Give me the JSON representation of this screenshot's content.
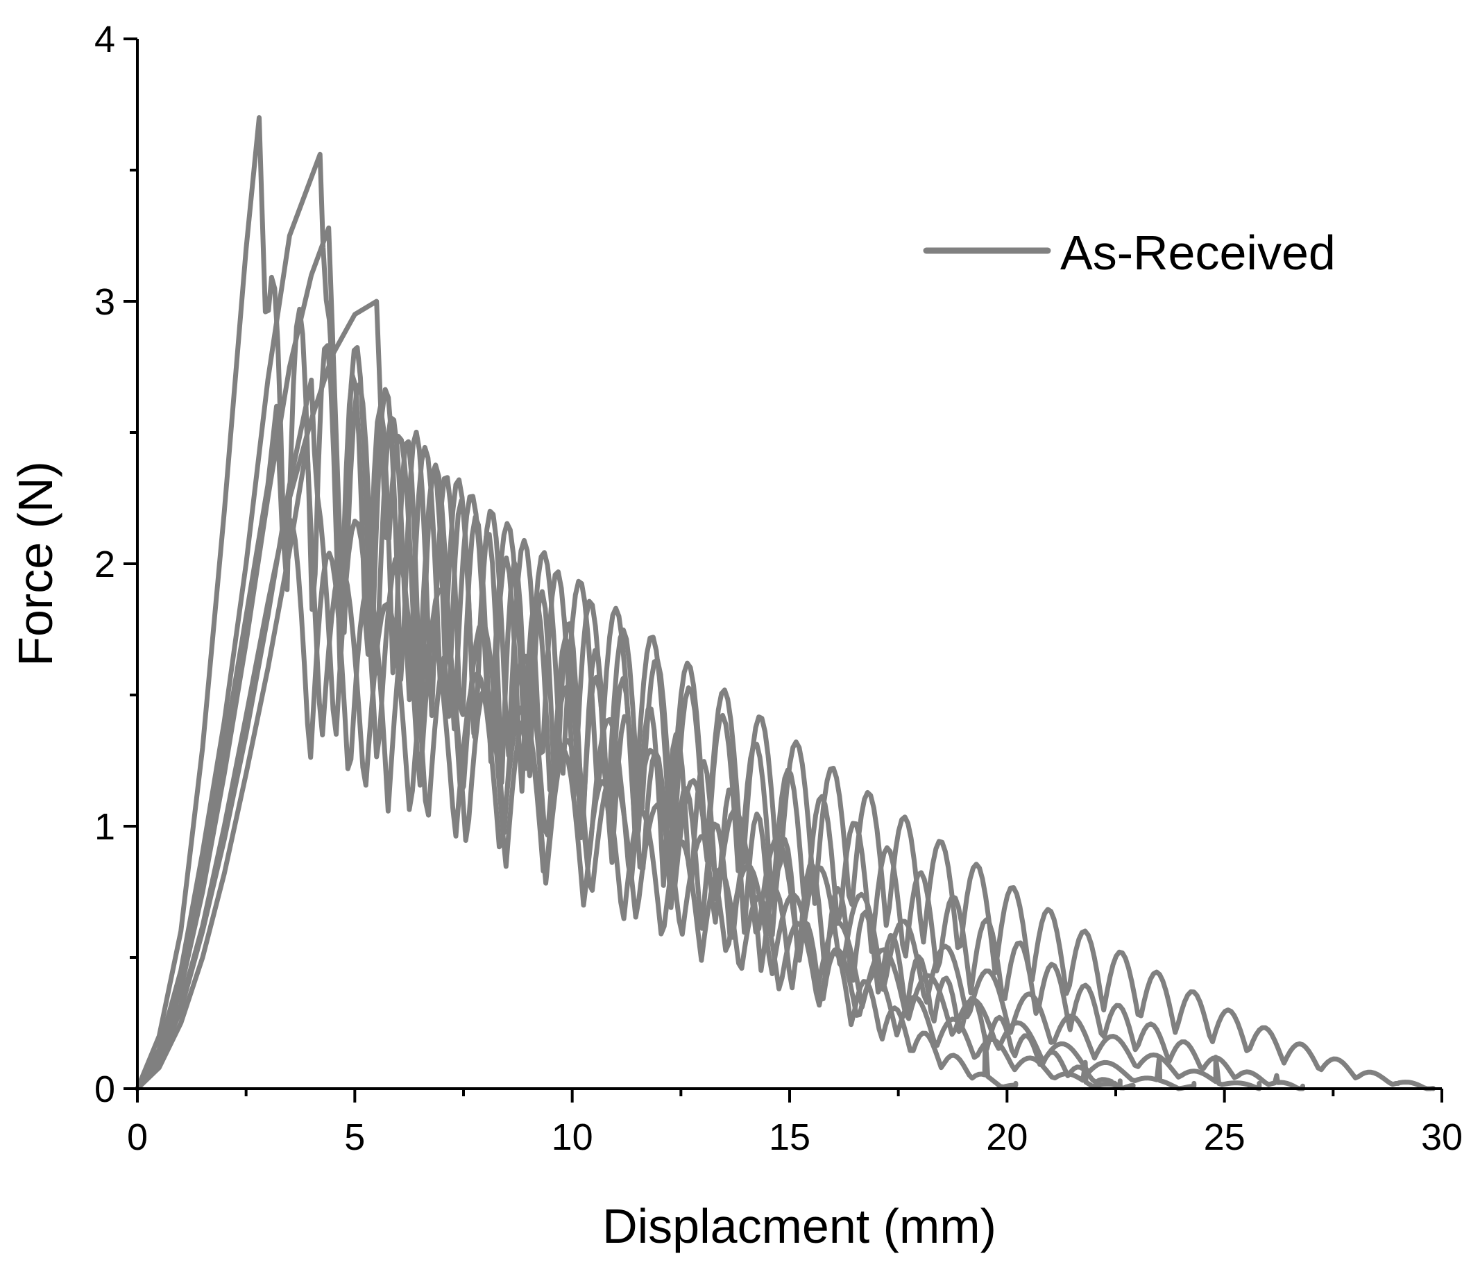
{
  "chart_data": {
    "type": "line",
    "title": "",
    "xlabel": "Displacment (mm)",
    "ylabel": "Force (N)",
    "xlim": [
      0,
      30
    ],
    "ylim": [
      0,
      4
    ],
    "x_ticks": [
      0,
      5,
      10,
      15,
      20,
      25,
      30
    ],
    "x_tick_labels": [
      "0",
      "5",
      "10",
      "15",
      "20",
      "25",
      "30"
    ],
    "y_ticks": [
      0,
      1,
      2,
      3,
      4
    ],
    "y_tick_labels": [
      "0",
      "1",
      "2",
      "3",
      "4"
    ],
    "x_minor_step": 2.5,
    "y_minor_step": 0.5,
    "grid": false,
    "legend": {
      "position": "top-right",
      "entries": [
        "As-Received"
      ]
    },
    "line_color": "#808080",
    "series": [
      {
        "name": "As-Received",
        "envelope_start": 2.8,
        "envelope_peak": 3.7,
        "final_x": 22.9,
        "pts": [
          [
            0,
            0
          ],
          [
            0.5,
            0.2
          ],
          [
            1,
            0.6
          ],
          [
            1.5,
            1.3
          ],
          [
            2,
            2.2
          ],
          [
            2.5,
            3.2
          ],
          [
            2.8,
            3.7
          ],
          [
            3.1,
            3.2
          ],
          [
            3.6,
            2.3
          ],
          [
            4.2,
            2.1
          ],
          [
            21,
            0.3
          ],
          [
            21.8,
            0.08
          ],
          [
            22.4,
            0.02
          ],
          [
            22.9,
            0.01
          ]
        ]
      },
      {
        "name": "As-Received",
        "envelope_start": 4.2,
        "envelope_peak": 3.56,
        "final_x": 20.2,
        "pts": [
          [
            0,
            0
          ],
          [
            0.5,
            0.15
          ],
          [
            1,
            0.45
          ],
          [
            1.5,
            0.9
          ],
          [
            2,
            1.4
          ],
          [
            2.5,
            2.0
          ],
          [
            3,
            2.7
          ],
          [
            3.5,
            3.25
          ],
          [
            4.2,
            3.56
          ],
          [
            4.5,
            3.2
          ],
          [
            5,
            2.6
          ],
          [
            19.5,
            0.2
          ],
          [
            20.2,
            0.02
          ]
        ]
      },
      {
        "name": "As-Received",
        "envelope_start": 4.4,
        "envelope_peak": 3.28,
        "final_x": 26.8,
        "pts": [
          [
            0,
            0
          ],
          [
            0.5,
            0.12
          ],
          [
            1,
            0.38
          ],
          [
            1.5,
            0.75
          ],
          [
            2,
            1.2
          ],
          [
            2.5,
            1.7
          ],
          [
            3,
            2.25
          ],
          [
            3.5,
            2.75
          ],
          [
            4,
            3.1
          ],
          [
            4.4,
            3.28
          ],
          [
            4.8,
            2.9
          ],
          [
            5.4,
            2.5
          ],
          [
            25.5,
            0.15
          ],
          [
            26.2,
            0.05
          ],
          [
            26.8,
            0.01
          ]
        ]
      },
      {
        "name": "As-Received",
        "envelope_start": 5.5,
        "envelope_peak": 3.0,
        "final_x": 29.8,
        "pts": [
          [
            0,
            0
          ],
          [
            0.5,
            0.1
          ],
          [
            1,
            0.32
          ],
          [
            1.5,
            0.62
          ],
          [
            2,
            1.0
          ],
          [
            2.5,
            1.42
          ],
          [
            3,
            1.85
          ],
          [
            3.5,
            2.25
          ],
          [
            4,
            2.55
          ],
          [
            4.5,
            2.8
          ],
          [
            5,
            2.95
          ],
          [
            5.5,
            3.0
          ],
          [
            6,
            2.6
          ],
          [
            27.5,
            0.08
          ],
          [
            29,
            0.02
          ],
          [
            29.8,
            0.0
          ]
        ]
      },
      {
        "name": "As-Received",
        "envelope_start": 3.2,
        "envelope_peak": 2.6,
        "final_x": 22.6,
        "pts": [
          [
            0,
            0
          ],
          [
            0.5,
            0.14
          ],
          [
            1,
            0.42
          ],
          [
            1.5,
            0.82
          ],
          [
            2,
            1.3
          ],
          [
            2.5,
            1.8
          ],
          [
            3,
            2.3
          ],
          [
            3.2,
            2.6
          ],
          [
            3.6,
            2.2
          ],
          [
            4.2,
            1.9
          ],
          [
            21.8,
            0.1
          ],
          [
            22.6,
            0.03
          ]
        ]
      },
      {
        "name": "As-Received",
        "envelope_start": 4.0,
        "envelope_peak": 2.7,
        "final_x": 25.8,
        "pts": [
          [
            0,
            0
          ],
          [
            0.5,
            0.1
          ],
          [
            1,
            0.3
          ],
          [
            1.5,
            0.6
          ],
          [
            2,
            0.95
          ],
          [
            2.5,
            1.35
          ],
          [
            3,
            1.8
          ],
          [
            3.5,
            2.3
          ],
          [
            4,
            2.7
          ],
          [
            4.4,
            2.4
          ],
          [
            5,
            2.1
          ],
          [
            24.8,
            0.12
          ],
          [
            25.8,
            0.02
          ]
        ]
      },
      {
        "name": "As-Received",
        "envelope_start": 3.9,
        "envelope_peak": 2.45,
        "final_x": 24.3,
        "pts": [
          [
            0,
            0
          ],
          [
            0.5,
            0.08
          ],
          [
            1,
            0.25
          ],
          [
            1.5,
            0.5
          ],
          [
            2,
            0.82
          ],
          [
            2.5,
            1.2
          ],
          [
            3,
            1.6
          ],
          [
            3.5,
            2.05
          ],
          [
            3.9,
            2.45
          ],
          [
            4.3,
            2.1
          ],
          [
            5,
            1.9
          ],
          [
            23.5,
            0.12
          ],
          [
            24.3,
            0.02
          ]
        ]
      }
    ]
  }
}
